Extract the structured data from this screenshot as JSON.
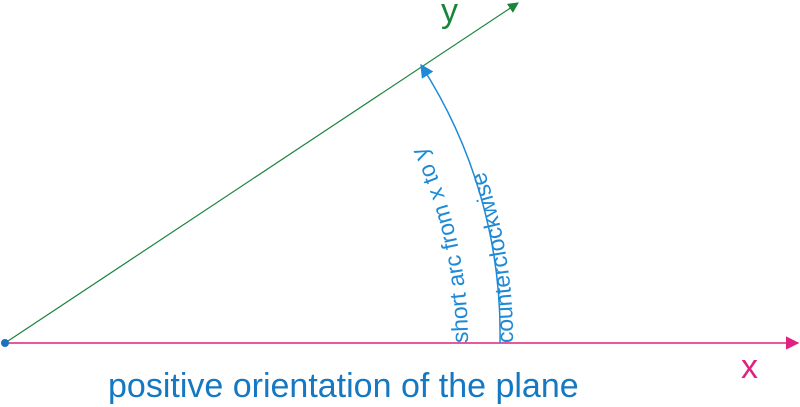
{
  "labels": {
    "y_axis": "y",
    "x_axis": "x",
    "arc_inner": "short arc from x to y",
    "arc_outer": "counterclockwise",
    "caption": "positive orientation of the plane"
  },
  "colors": {
    "x_axis": "#e0217f",
    "y_axis": "#19853a",
    "arc": "#1e8ad6",
    "origin": "#1f6fc0",
    "caption": "#1578c2"
  }
}
